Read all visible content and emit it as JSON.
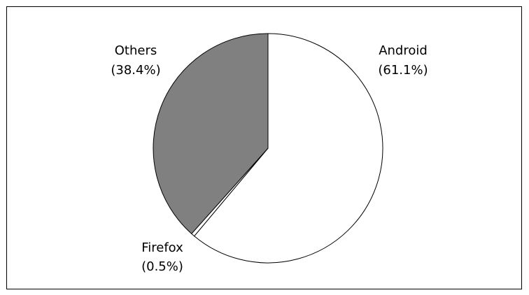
{
  "chart_data": {
    "type": "pie",
    "title": "",
    "start_angle": "12 o'clock",
    "direction": "clockwise",
    "slices": [
      {
        "label": "Android",
        "value": 61.1,
        "value_text": "(61.1%)",
        "color": "#ffffff"
      },
      {
        "label": "Firefox",
        "value": 0.5,
        "value_text": "(0.5%)",
        "color": "#ffffff"
      },
      {
        "label": "Others",
        "value": 38.4,
        "value_text": "(38.4%)",
        "color": "#808080"
      }
    ],
    "legend": "none"
  }
}
